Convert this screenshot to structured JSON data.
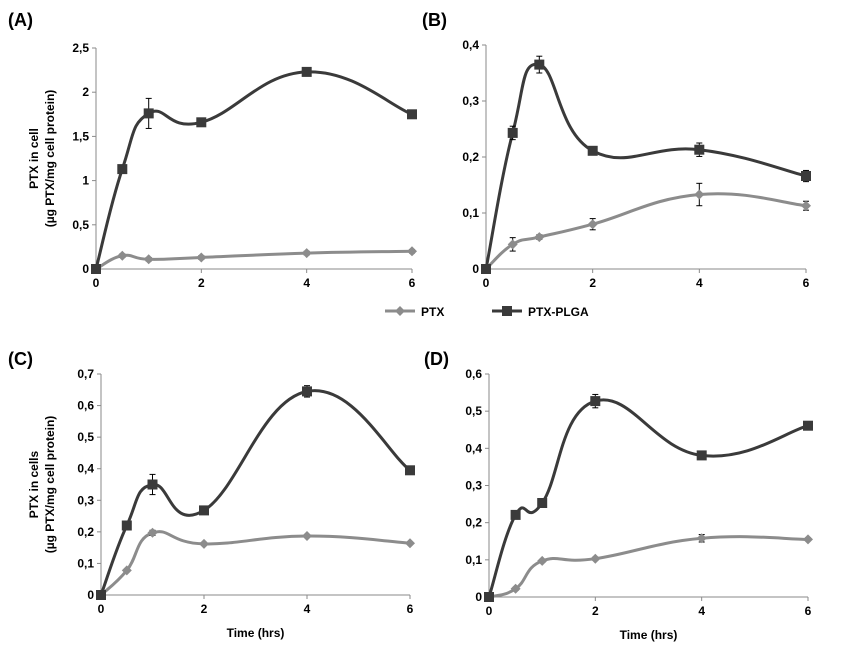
{
  "chart_data": [
    {
      "panel": "(A)",
      "type": "line",
      "x": [
        0,
        0.5,
        1,
        2,
        4,
        6
      ],
      "xticks": [
        "0",
        "2",
        "4",
        "6"
      ],
      "yticks": [
        "0",
        "0,5",
        "1",
        "1,5",
        "2",
        "2,5"
      ],
      "ylim": [
        0,
        2.5
      ],
      "xlim": [
        0,
        6
      ],
      "ylabel": [
        "PTX in cell",
        "(µg PTX/mg cell protein)"
      ],
      "xlabel": "",
      "series": [
        {
          "name": "PTX",
          "values": [
            0,
            0.15,
            0.11,
            0.13,
            0.18,
            0.2
          ],
          "errors": [
            0,
            0.02,
            0.02,
            0.02,
            0.02,
            0.02
          ]
        },
        {
          "name": "PTX-PLGA",
          "values": [
            0,
            1.13,
            1.76,
            1.66,
            2.23,
            1.75
          ],
          "errors": [
            0,
            0.03,
            0.17,
            0.03,
            0.03,
            0.03
          ]
        }
      ]
    },
    {
      "panel": "(B)",
      "type": "line",
      "x": [
        0,
        0.5,
        1,
        2,
        4,
        6
      ],
      "xticks": [
        "0",
        "2",
        "4",
        "6"
      ],
      "yticks": [
        "0",
        "0,1",
        "0,2",
        "0,3",
        "0,4"
      ],
      "ylim": [
        0,
        0.4
      ],
      "xlim": [
        0,
        6
      ],
      "ylabel": [],
      "xlabel": "",
      "series": [
        {
          "name": "PTX",
          "values": [
            0,
            0.044,
            0.057,
            0.08,
            0.133,
            0.113
          ],
          "errors": [
            0,
            0.012,
            0.004,
            0.01,
            0.02,
            0.008
          ]
        },
        {
          "name": "PTX-PLGA",
          "values": [
            0,
            0.243,
            0.365,
            0.211,
            0.213,
            0.166
          ],
          "errors": [
            0,
            0.012,
            0.015,
            0.004,
            0.012,
            0.01
          ]
        }
      ]
    },
    {
      "panel": "(C)",
      "type": "line",
      "x": [
        0,
        0.5,
        1,
        2,
        4,
        6
      ],
      "xticks": [
        "0",
        "2",
        "4",
        "6"
      ],
      "yticks": [
        "0",
        "0,1",
        "0,2",
        "0,3",
        "0,4",
        "0,5",
        "0,6",
        "0,7"
      ],
      "ylim": [
        0,
        0.7
      ],
      "xlim": [
        0,
        6
      ],
      "ylabel": [
        "PTX in cells",
        "(µg PTX/mg cell protein)"
      ],
      "xlabel": "Time (hrs)",
      "series": [
        {
          "name": "PTX",
          "values": [
            0,
            0.078,
            0.197,
            0.162,
            0.187,
            0.164
          ],
          "errors": [
            0,
            0.004,
            0.008,
            0.004,
            0.004,
            0.004
          ]
        },
        {
          "name": "PTX-PLGA",
          "values": [
            0,
            0.22,
            0.35,
            0.268,
            0.645,
            0.395
          ],
          "errors": [
            0,
            0.006,
            0.032,
            0.006,
            0.018,
            0.006
          ]
        }
      ]
    },
    {
      "panel": "(D)",
      "type": "line",
      "x": [
        0,
        0.5,
        1,
        2,
        4,
        6
      ],
      "xticks": [
        "0",
        "2",
        "4",
        "6"
      ],
      "yticks": [
        "0",
        "0,1",
        "0,2",
        "0,3",
        "0,4",
        "0,5",
        "0,6"
      ],
      "ylim": [
        0,
        0.6
      ],
      "xlim": [
        0,
        6
      ],
      "ylabel": [],
      "xlabel": "Time (hrs)",
      "series": [
        {
          "name": "PTX",
          "values": [
            0,
            0.022,
            0.097,
            0.103,
            0.158,
            0.155
          ],
          "errors": [
            0,
            0.004,
            0.004,
            0.004,
            0.01,
            0.004
          ]
        },
        {
          "name": "PTX-PLGA",
          "values": [
            0,
            0.221,
            0.253,
            0.527,
            0.381,
            0.461
          ],
          "errors": [
            0,
            0.004,
            0.006,
            0.018,
            0.006,
            0.006
          ]
        }
      ]
    }
  ],
  "legend": {
    "position": "center",
    "items": [
      {
        "name": "PTX",
        "marker": "diamond"
      },
      {
        "name": "PTX-PLGA",
        "marker": "square"
      }
    ]
  },
  "colors": {
    "PTX": "#8c8c8c",
    "PTX-PLGA": "#3a3a3a",
    "axis": "#8a8a8a"
  }
}
